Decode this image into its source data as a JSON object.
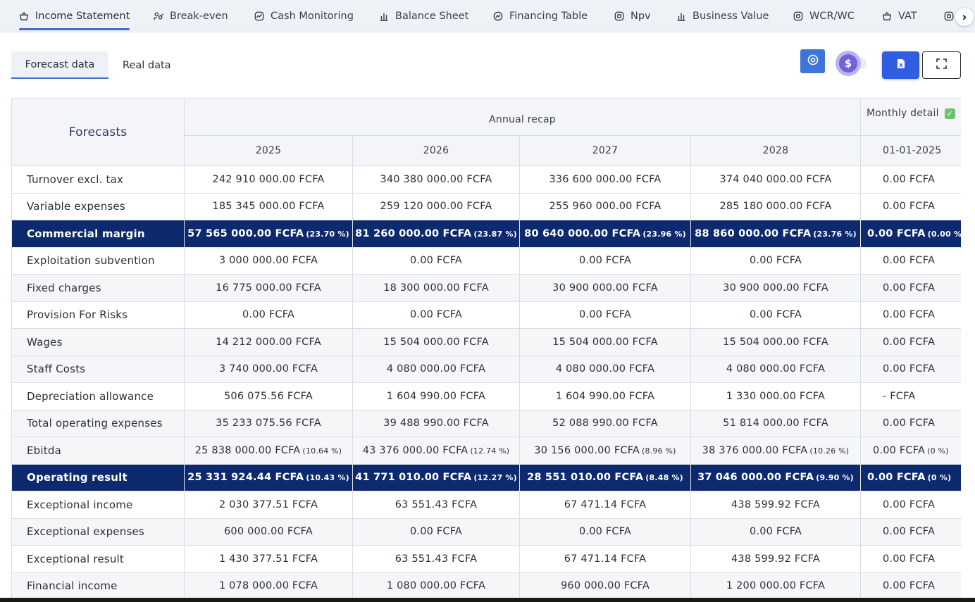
{
  "tabs": [
    {
      "label": "Income Statement",
      "icon": "basket-icon"
    },
    {
      "label": "Break-even",
      "icon": "people-icon"
    },
    {
      "label": "Cash Monitoring",
      "icon": "chart-wave-icon"
    },
    {
      "label": "Balance Sheet",
      "icon": "bar-chart-icon"
    },
    {
      "label": "Financing Table",
      "icon": "trend-circle-icon"
    },
    {
      "label": "Npv",
      "icon": "square-dot-icon"
    },
    {
      "label": "Business Value",
      "icon": "bar-chart-icon"
    },
    {
      "label": "WCR/WC",
      "icon": "square-dot-icon"
    },
    {
      "label": "VAT",
      "icon": "basket-icon"
    }
  ],
  "subtabs": {
    "forecast": "Forecast data",
    "real": "Real data"
  },
  "toggle": {
    "currency_symbol": "$"
  },
  "colors": {
    "accent": "#3f6fd0",
    "highlight_row": "#0d2a6e",
    "excel_button": "#2f5fe0",
    "check": "#6cc36c"
  },
  "table": {
    "forecasts_header": "Forecasts",
    "annual_recap": "Annual recap",
    "monthly_detail": "Monthly detail",
    "columns": [
      "2025",
      "2026",
      "2027",
      "2028",
      "01-01-2025"
    ],
    "rows": [
      {
        "label": "Turnover excl. tax",
        "cells": [
          "242 910 000.00 FCFA",
          "340 380 000.00 FCFA",
          "336 600 000.00 FCFA",
          "374 040 000.00 FCFA",
          "0.00 FCFA"
        ]
      },
      {
        "label": "Variable expenses",
        "cells": [
          "185 345 000.00 FCFA",
          "259 120 000.00 FCFA",
          "255 960 000.00 FCFA",
          "285 180 000.00 FCFA",
          "0.00 FCFA"
        ]
      },
      {
        "label": "Commercial margin",
        "cells": [
          "57 565 000.00 FCFA",
          "81 260 000.00 FCFA",
          "80 640 000.00 FCFA",
          "88 860 000.00 FCFA",
          "0.00 FCFA"
        ],
        "pcts": [
          "(23.70 %)",
          "(23.87 %)",
          "(23.96 %)",
          "(23.76 %)",
          "(0.00 %)"
        ]
      },
      {
        "label": "Exploitation subvention",
        "cells": [
          "3 000 000.00 FCFA",
          "0.00 FCFA",
          "0.00 FCFA",
          "0.00 FCFA",
          "0.00 FCFA"
        ]
      },
      {
        "label": "Fixed charges",
        "cells": [
          "16 775 000.00 FCFA",
          "18 300 000.00 FCFA",
          "30 900 000.00 FCFA",
          "30 900 000.00 FCFA",
          "0.00 FCFA"
        ]
      },
      {
        "label": "Provision For Risks",
        "cells": [
          "0.00 FCFA",
          "0.00 FCFA",
          "0.00 FCFA",
          "0.00 FCFA",
          "0.00 FCFA"
        ]
      },
      {
        "label": "Wages",
        "cells": [
          "14 212 000.00 FCFA",
          "15 504 000.00 FCFA",
          "15 504 000.00 FCFA",
          "15 504 000.00 FCFA",
          "0.00 FCFA"
        ]
      },
      {
        "label": "Staff Costs",
        "cells": [
          "3 740 000.00 FCFA",
          "4 080 000.00 FCFA",
          "4 080 000.00 FCFA",
          "4 080 000.00 FCFA",
          "0.00 FCFA"
        ]
      },
      {
        "label": "Depreciation allowance",
        "cells": [
          "506 075.56 FCFA",
          "1 604 990.00 FCFA",
          "1 604 990.00 FCFA",
          "1 330 000.00 FCFA",
          "- FCFA"
        ]
      },
      {
        "label": "Total operating expenses",
        "cells": [
          "35 233 075.56 FCFA",
          "39 488 990.00 FCFA",
          "52 088 990.00 FCFA",
          "51 814 000.00 FCFA",
          "0.00 FCFA"
        ]
      },
      {
        "label": "Ebitda",
        "cells": [
          "25 838 000.00 FCFA",
          "43 376 000.00 FCFA",
          "30 156 000.00 FCFA",
          "38 376 000.00 FCFA",
          "0.00 FCFA"
        ],
        "pcts": [
          "(10.64 %)",
          "(12.74 %)",
          "(8.96 %)",
          "(10.26 %)",
          "(0 %)"
        ]
      },
      {
        "label": "Operating result",
        "cells": [
          "25 331 924.44 FCFA",
          "41 771 010.00 FCFA",
          "28 551 010.00 FCFA",
          "37 046 000.00 FCFA",
          "0.00 FCFA"
        ],
        "pcts": [
          "(10.43 %)",
          "(12.27 %)",
          "(8.48 %)",
          "(9.90 %)",
          "(0 %)"
        ]
      },
      {
        "label": "Exceptional income",
        "cells": [
          "2 030 377.51 FCFA",
          "63 551.43 FCFA",
          "67 471.14 FCFA",
          "438 599.92 FCFA",
          "0.00 FCFA"
        ]
      },
      {
        "label": "Exceptional expenses",
        "cells": [
          "600 000.00 FCFA",
          "0.00 FCFA",
          "0.00 FCFA",
          "0.00 FCFA",
          "0.00 FCFA"
        ]
      },
      {
        "label": "Exceptional result",
        "cells": [
          "1 430 377.51 FCFA",
          "63 551.43 FCFA",
          "67 471.14 FCFA",
          "438 599.92 FCFA",
          "0.00 FCFA"
        ]
      },
      {
        "label": "Financial income",
        "cells": [
          "1 078 000.00 FCFA",
          "1 080 000.00 FCFA",
          "960 000.00 FCFA",
          "1 200 000.00 FCFA",
          "0.00 FCFA"
        ]
      }
    ]
  }
}
